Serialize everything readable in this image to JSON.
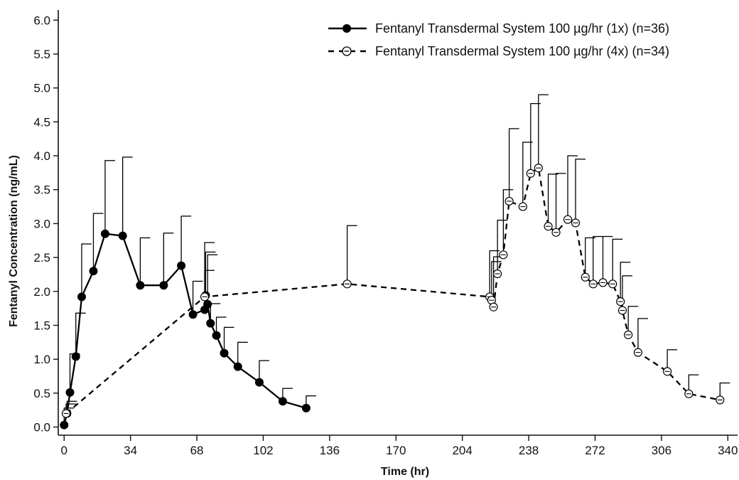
{
  "chart_data": {
    "type": "line",
    "xlabel": "Time (hr)",
    "ylabel": "Fentanyl Concentration (ng/mL)",
    "xlim": [
      -3,
      345
    ],
    "ylim": [
      -0.12,
      6.15
    ],
    "xticks": [
      0,
      34,
      68,
      102,
      136,
      170,
      204,
      238,
      272,
      306,
      340
    ],
    "yticks": [
      0.0,
      0.5,
      1.0,
      1.5,
      2.0,
      2.5,
      3.0,
      3.5,
      4.0,
      4.5,
      5.0,
      5.5,
      6.0
    ],
    "ytick_labels": [
      "0.0",
      "0.5",
      "1.0",
      "1.5",
      "2.0",
      "2.5",
      "3.0",
      "3.5",
      "4.0",
      "4.5",
      "5.0",
      "5.5",
      "6.0"
    ],
    "legend_position": "top-right",
    "series": [
      {
        "name": "Fentanyl Transdermal System 100 µg/hr (1x) (n=36)",
        "style": "solid",
        "marker": "filled-circle",
        "color": "#000000",
        "x": [
          0,
          1.5,
          3,
          6,
          9,
          15,
          21,
          30,
          39,
          51,
          60,
          66,
          72,
          72.5,
          73.5,
          75,
          78,
          82,
          89,
          100,
          112,
          124
        ],
        "y": [
          0.03,
          0.2,
          0.51,
          1.04,
          1.92,
          2.3,
          2.85,
          2.82,
          2.09,
          2.09,
          2.38,
          1.66,
          1.73,
          1.94,
          1.81,
          1.53,
          1.35,
          1.09,
          0.89,
          0.66,
          0.38,
          0.28
        ],
        "err": [
          0.25,
          0.18,
          0.57,
          0.64,
          0.78,
          0.85,
          1.08,
          1.16,
          0.7,
          0.77,
          0.73,
          0.49,
          0.58,
          0.64,
          0.73,
          0.29,
          0.27,
          0.38,
          0.36,
          0.32,
          0.19,
          0.18
        ]
      },
      {
        "name": "Fentanyl Transdermal System 100 µg/hr (4x) (n=34)",
        "style": "dashed",
        "marker": "open-circle-bar",
        "color": "#000000",
        "x": [
          1,
          72,
          145,
          218,
          219,
          220,
          222,
          225,
          228,
          235,
          239,
          243,
          248,
          252,
          258,
          262,
          267,
          271,
          276,
          281,
          285,
          286,
          289,
          294,
          309,
          320,
          336
        ],
        "y": [
          0.2,
          1.92,
          2.11,
          1.92,
          1.87,
          1.77,
          2.26,
          2.54,
          3.33,
          3.25,
          3.74,
          3.82,
          2.96,
          2.87,
          3.06,
          3.01,
          2.21,
          2.11,
          2.13,
          2.11,
          1.85,
          1.72,
          1.36,
          1.1,
          0.82,
          0.49,
          0.4
        ],
        "err": [
          0.14,
          0.8,
          0.86,
          0.68,
          0.57,
          0.74,
          0.79,
          0.96,
          1.07,
          0.95,
          1.03,
          1.08,
          0.77,
          0.87,
          0.94,
          0.94,
          0.58,
          0.7,
          0.68,
          0.66,
          0.58,
          0.51,
          0.42,
          0.5,
          0.32,
          0.28,
          0.25
        ]
      }
    ]
  }
}
